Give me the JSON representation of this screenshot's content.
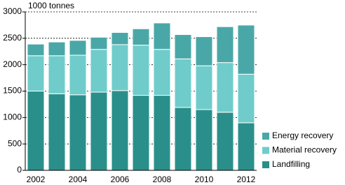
{
  "chart_data": {
    "type": "stacked_bar",
    "y_label": "1000 tonnes",
    "categories": [
      "2002",
      null,
      "2004",
      null,
      "2006",
      null,
      "2008",
      null,
      "2010",
      null,
      "2012"
    ],
    "series": [
      {
        "name": "Landfilling",
        "color": "#2a8f8a",
        "values": [
          1500,
          1450,
          1430,
          1480,
          1510,
          1420,
          1420,
          1190,
          1150,
          1100,
          900
        ]
      },
      {
        "name": "Material recovery",
        "color": "#6fcccb",
        "values": [
          670,
          720,
          750,
          810,
          870,
          950,
          870,
          920,
          830,
          940,
          920
        ]
      },
      {
        "name": "Energy recovery",
        "color": "#4aa7a7",
        "values": [
          220,
          260,
          280,
          230,
          230,
          310,
          500,
          460,
          550,
          680,
          930
        ]
      }
    ],
    "ylim": [
      0,
      3000
    ],
    "yticks": [
      0,
      500,
      1000,
      1500,
      2000,
      2500,
      3000
    ],
    "grid": true,
    "legend": "lower right"
  }
}
